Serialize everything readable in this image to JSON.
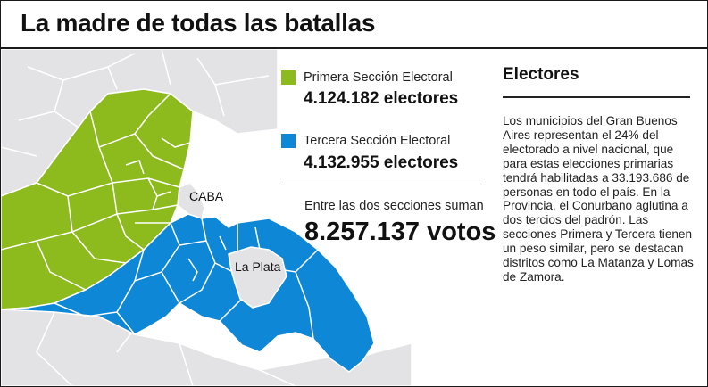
{
  "header": {
    "title": "La madre de todas las batallas"
  },
  "map": {
    "labels": {
      "caba": "CABA",
      "la_plata": "La Plata"
    },
    "colors": {
      "primera": "#8dbb1e",
      "tercera": "#0e87d6",
      "other": "#e3e3e5",
      "water": "#ffffff",
      "border": "#ffffff"
    }
  },
  "legend": {
    "primera": {
      "name": "Primera Sección Electoral",
      "value": "4.124.182 electores",
      "color": "#8dbb1e"
    },
    "tercera": {
      "name": "Tercera Sección Electoral",
      "value": "4.132.955 electores",
      "color": "#0e87d6"
    },
    "sum_caption": "Entre las dos secciones suman",
    "sum_value": "8.257.137 votos"
  },
  "sidebar": {
    "heading": "Electores",
    "body": "Los municipios del Gran Buenos Aires representan el 24% del electorado a nivel nacional, que para estas elecciones primarias tendrá habilitadas a 33.193.686 de personas en todo el país. En la Provincia, el Conurbano aglutina a dos tercios del padrón. Las secciones Primera y Tercera tienen un peso similar, pero se destacan distritos como La Matanza y Lomas de Zamora."
  }
}
